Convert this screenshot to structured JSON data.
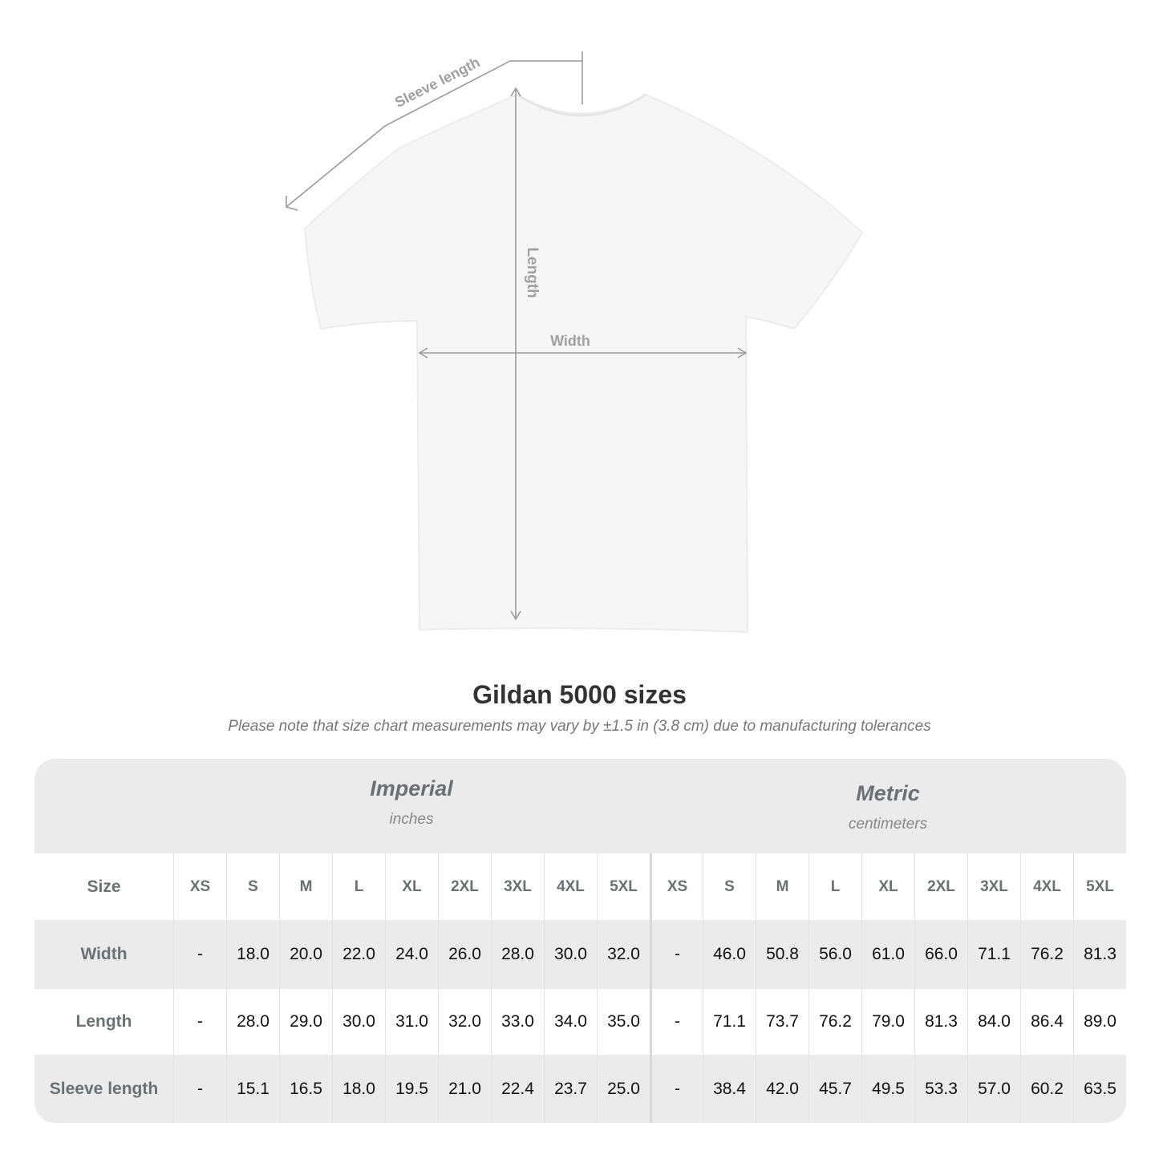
{
  "diagram": {
    "sleeve_label": "Sleeve length",
    "length_label": "Length",
    "width_label": "Width",
    "line_color": "#999999",
    "shirt_color": "#f6f6f6"
  },
  "title": "Gildan 5000 sizes",
  "note": "Please note that size chart measurements may vary by ±1.5 in (3.8 cm) due to manufacturing tolerances",
  "table": {
    "imperial": {
      "name": "Imperial",
      "unit": "inches"
    },
    "metric": {
      "name": "Metric",
      "unit": "centimeters"
    },
    "size_label": "Size",
    "sizes": [
      "XS",
      "S",
      "M",
      "L",
      "XL",
      "2XL",
      "3XL",
      "4XL",
      "5XL"
    ],
    "rows": [
      {
        "label": "Width",
        "imperial": [
          "-",
          "18.0",
          "20.0",
          "22.0",
          "24.0",
          "26.0",
          "28.0",
          "30.0",
          "32.0"
        ],
        "metric": [
          "-",
          "46.0",
          "50.8",
          "56.0",
          "61.0",
          "66.0",
          "71.1",
          "76.2",
          "81.3"
        ]
      },
      {
        "label": "Length",
        "imperial": [
          "-",
          "28.0",
          "29.0",
          "30.0",
          "31.0",
          "32.0",
          "33.0",
          "34.0",
          "35.0"
        ],
        "metric": [
          "-",
          "71.1",
          "73.7",
          "76.2",
          "79.0",
          "81.3",
          "84.0",
          "86.4",
          "89.0"
        ]
      },
      {
        "label": "Sleeve length",
        "imperial": [
          "-",
          "15.1",
          "16.5",
          "18.0",
          "19.5",
          "21.0",
          "22.4",
          "23.7",
          "25.0"
        ],
        "metric": [
          "-",
          "38.4",
          "42.0",
          "45.7",
          "49.5",
          "53.3",
          "57.0",
          "60.2",
          "63.5"
        ]
      }
    ]
  }
}
